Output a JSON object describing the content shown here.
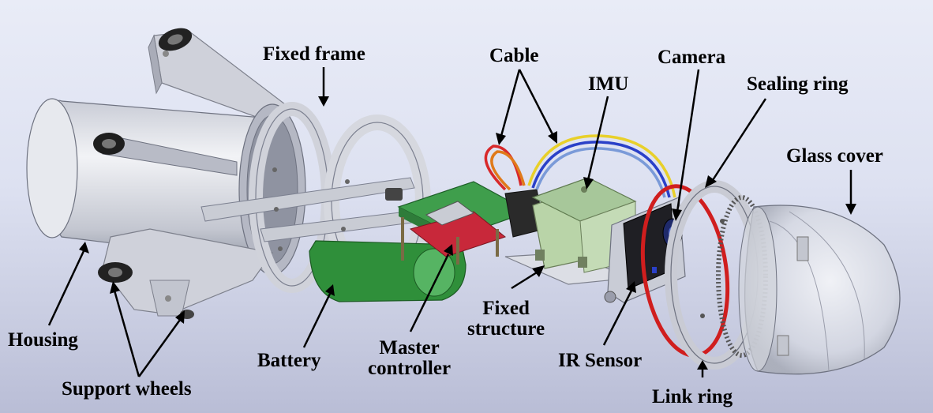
{
  "labels": {
    "fixed_frame": "Fixed frame",
    "cable": "Cable",
    "imu": "IMU",
    "camera": "Camera",
    "sealing_ring": "Sealing ring",
    "glass_cover": "Glass cover",
    "housing": "Housing",
    "support_wheels": "Support wheels",
    "battery": "Battery",
    "master_controller_1": "Master",
    "master_controller_2": "controller",
    "fixed_structure_1": "Fixed",
    "fixed_structure_2": "structure",
    "ir_sensor": "IR Sensor",
    "link_ring": "Link ring"
  },
  "colors": {
    "background": "#dde1f1",
    "housing": "#d9dbe3",
    "pcb_green": "#3f9e4c",
    "battery_green": "#2f8f3a",
    "imu_green": "#a7c79a",
    "cable_red": "#d8282a",
    "cable_yellow": "#e8d02a",
    "cable_blue": "#2a40c8",
    "sealing_ring": "#d01e1e",
    "dome": "#e6e8ef"
  }
}
